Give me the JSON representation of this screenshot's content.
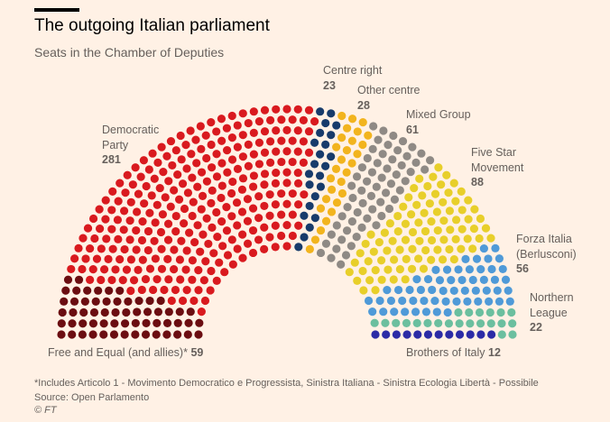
{
  "title": "The outgoing Italian parliament",
  "subtitle": "Seats in the Chamber of Deputies",
  "chart_data": {
    "type": "parliament",
    "title": "The outgoing Italian parliament",
    "subtitle": "Seats in the Chamber of Deputies",
    "series": [
      {
        "name": "Free and Equal (and allies)*",
        "name_lines": [
          "Free and Equal (and allies)*"
        ],
        "seats": 59,
        "color": "#6b0d11"
      },
      {
        "name": "Democratic Party",
        "name_lines": [
          "Democratic",
          "Party"
        ],
        "seats": 281,
        "color": "#d91a1f"
      },
      {
        "name": "Centre right",
        "name_lines": [
          "Centre right"
        ],
        "seats": 23,
        "color": "#173b6b"
      },
      {
        "name": "Other centre",
        "name_lines": [
          "Other centre"
        ],
        "seats": 28,
        "color": "#f2b41e"
      },
      {
        "name": "Mixed Group",
        "name_lines": [
          "Mixed Group"
        ],
        "seats": 61,
        "color": "#8f8a85"
      },
      {
        "name": "Five Star Movement",
        "name_lines": [
          "Five Star",
          "Movement"
        ],
        "seats": 88,
        "color": "#e8cf2a"
      },
      {
        "name": "Forza Italia (Berlusconi)",
        "name_lines": [
          "Forza Italia",
          "(Berlusconi)"
        ],
        "seats": 56,
        "color": "#4f9ad8"
      },
      {
        "name": "Northern League",
        "name_lines": [
          "Northern",
          "League"
        ],
        "seats": 22,
        "color": "#6bbf9f"
      },
      {
        "name": "Brothers of Italy",
        "name_lines": [
          "Brothers of Italy"
        ],
        "seats": 12,
        "color": "#2b2ba6"
      }
    ],
    "total_seats": 630,
    "legend": "direct labels"
  },
  "footnote": "*Includes Articolo 1 - Movimento Democratico e Progressista, Sinistra Italiana - Sinistra Ecologia Libertà - Possibile",
  "source": "Source: Open Parlamento",
  "credit": "© FT"
}
